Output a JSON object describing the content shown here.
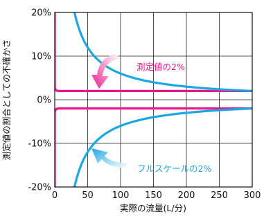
{
  "chart_data": {
    "type": "line",
    "xlabel": "実際の流量(L/分)",
    "ylabel": "測定値の割合としての不確かさ",
    "xlim": [
      0,
      300
    ],
    "ylim": [
      -20,
      20
    ],
    "x_ticks": [
      "0",
      "50",
      "100",
      "150",
      "200",
      "250",
      "300"
    ],
    "y_ticks": [
      "20%",
      "10%",
      "0%",
      "-10%",
      "-20%"
    ],
    "grid": true,
    "series": [
      {
        "name": "測定値の2%",
        "color": "#e8198b",
        "curve": "constant_percent_of_reading",
        "points": [
          [
            0,
            20
          ],
          [
            2,
            2
          ],
          [
            300,
            2
          ]
        ],
        "mirror": true
      },
      {
        "name": "フルスケールの2%",
        "color": "#1aa7e4",
        "curve": "percent_of_full_scale",
        "points": [
          [
            30,
            20
          ],
          [
            50,
            12
          ],
          [
            60,
            10
          ],
          [
            75,
            8
          ],
          [
            100,
            6
          ],
          [
            150,
            4
          ],
          [
            200,
            3
          ],
          [
            250,
            2.4
          ],
          [
            300,
            2
          ]
        ],
        "mirror": true
      }
    ],
    "annotations": [
      {
        "text": "測定値の2%",
        "color": "#e8198b",
        "target": "測定値の2%"
      },
      {
        "text": "フルスケールの2%",
        "color": "#1aa7e4",
        "target": "フルスケールの2%"
      }
    ]
  }
}
